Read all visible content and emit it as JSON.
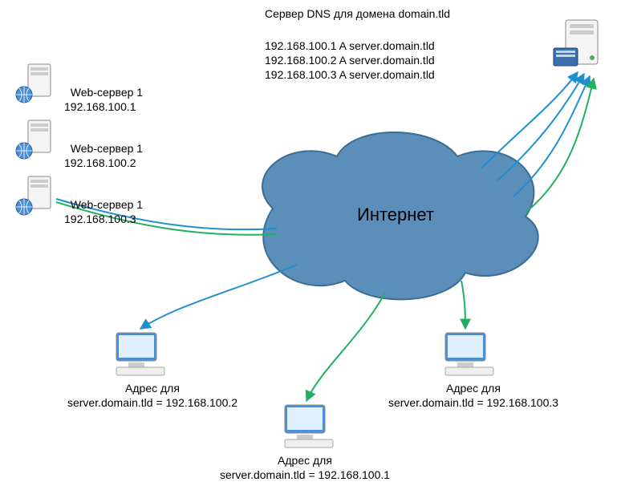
{
  "colors": {
    "cloud_fill": "#5b8fb9",
    "cloud_stroke": "#3a6d94",
    "server_body": "#eeeeee",
    "server_stroke": "#888888",
    "globe_fill": "#4a90d9",
    "book_fill": "#3a6fb0",
    "monitor_fill": "#4a90d9",
    "monitor_frame": "#cccccc",
    "arrow_blue": "#1e90d0",
    "arrow_green": "#20b060",
    "text": "#000000"
  },
  "diagram": {
    "title": "Сервер DNS для домена domain.tld",
    "records": [
      "192.168.100.1 A server.domain.tld",
      "192.168.100.2 A server.domain.tld",
      "192.168.100.3 A server.domain.tld"
    ],
    "webservers": [
      {
        "name": "Web-сервер 1",
        "ip": "192.168.100.1"
      },
      {
        "name": "Web-сервер 1",
        "ip": "192.168.100.2"
      },
      {
        "name": "Web-сервер 1",
        "ip": "192.168.100.3"
      }
    ],
    "cloud_label": "Интернет",
    "clients": [
      {
        "label": "Адрес для\nserver.domain.tld = 192.168.100.2"
      },
      {
        "label": "Адрес для\nserver.domain.tld = 192.168.100.1"
      },
      {
        "label": "Адрес для\nserver.domain.tld = 192.168.100.3"
      }
    ]
  },
  "style": {
    "label_fontsize": 14,
    "cloud_fontsize": 22,
    "arrow_width": 2,
    "arrowhead_len": 12
  }
}
